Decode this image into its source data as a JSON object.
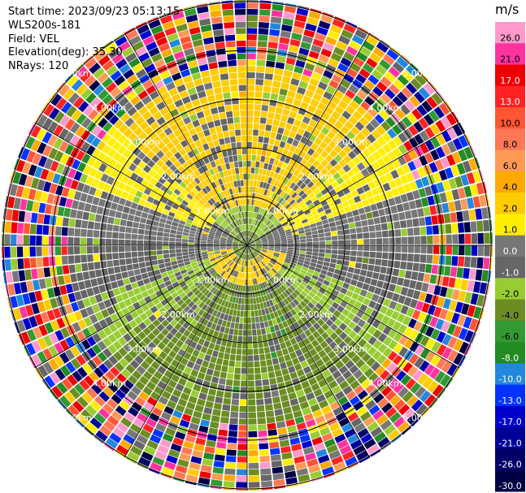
{
  "header": {
    "start_time": "Start time: 2023/09/23 05:13:15",
    "instrument": "WLS200s-181",
    "field": "Field: VEL",
    "elevation": "Elevation(deg): 35.30",
    "nrays": "NRays: 120"
  },
  "chart_data": {
    "type": "heatmap",
    "subtype": "polar-ppi",
    "field": "VEL",
    "units": "m/s",
    "n_rays": 120,
    "range_rings_km": [
      1.0,
      2.0,
      3.0,
      4.0,
      5.0
    ],
    "range_ring_labels": [
      "1.00km",
      "2.00km",
      "3.00km",
      "4.00km",
      "5.00km"
    ],
    "max_range_km": 5.8,
    "colorbar": {
      "ticks": [
        26.0,
        21.0,
        17.0,
        13.0,
        10.0,
        8.0,
        6.0,
        4.0,
        2.0,
        1.0,
        0.0,
        -1.0,
        -2.0,
        -4.0,
        -6.0,
        -8.0,
        -10.0,
        -13.0,
        -17.0,
        -21.0,
        -26.0,
        -30.0
      ],
      "tick_labels": [
        "26.0",
        "21.0",
        "17.0",
        "13.0",
        "10.0",
        "8.0",
        "6.0",
        "4.0",
        "2.0",
        "1.0",
        "0.0",
        "-1.0",
        "-2.0",
        "-4.0",
        "-6.0",
        "-8.0",
        "-10.0",
        "-13.0",
        "-17.0",
        "-21.0",
        "-26.0",
        "-30.0"
      ],
      "colors": [
        "#ff99cc",
        "#ff33a0",
        "#ee0000",
        "#ff2222",
        "#ff5533",
        "#ff7755",
        "#ff9955",
        "#ffaa00",
        "#ffcc00",
        "#ffee00",
        "#777777",
        "#666666",
        "#99cc33",
        "#6b8e23",
        "#339933",
        "#228b22",
        "#2288dd",
        "#0033ff",
        "#0000cc",
        "#000099",
        "#000066",
        "#000044"
      ]
    },
    "pattern": "inner rings show a velocity dipole: yellow (+2 to +4 m/s) on the upper side and near center, olive/green (-2 to -4 m/s) on the lower side, gray near 0; beyond ~3.5 km the data is noisy across the full colour scale"
  }
}
